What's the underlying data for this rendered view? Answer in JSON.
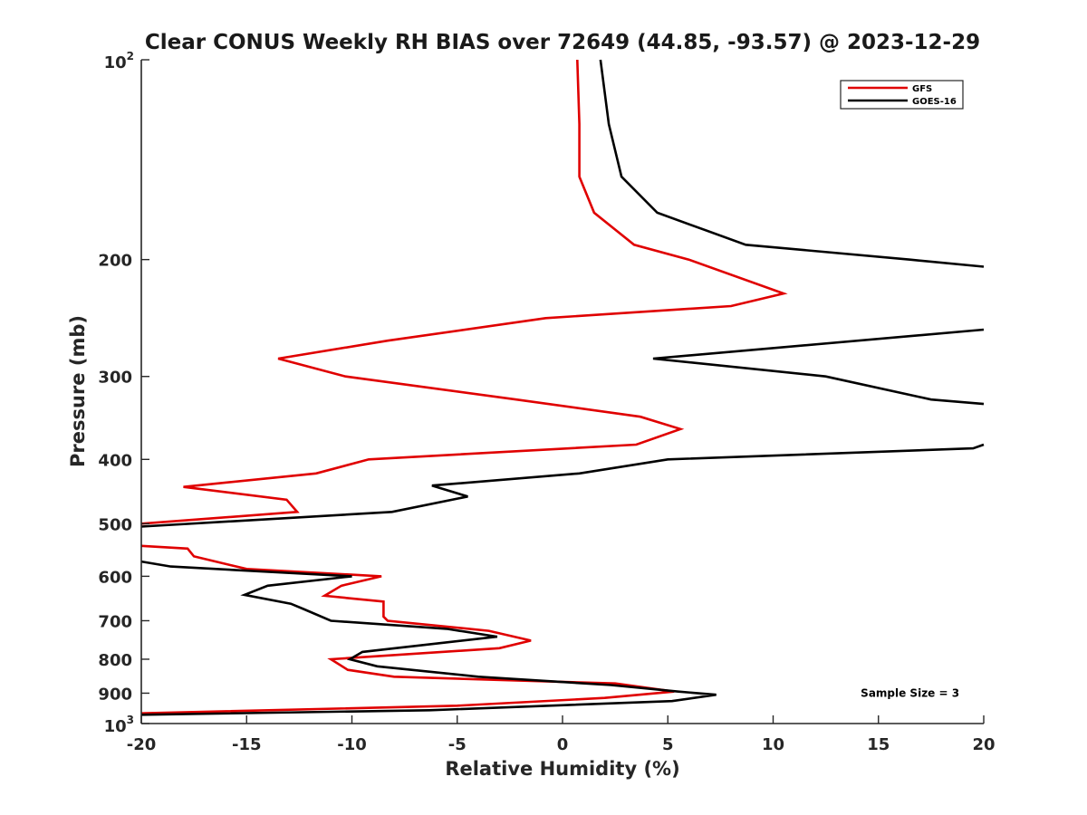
{
  "chart_data": {
    "type": "line",
    "title": "Clear CONUS Weekly RH BIAS over 72649 (44.85, -93.57) @ 2023-12-29",
    "xlabel": "Relative Humidity (%)",
    "ylabel": "Pressure (mb)",
    "xlim": [
      -20,
      20
    ],
    "ylim": [
      100,
      1000
    ],
    "y_scale": "log",
    "y_reversed": true,
    "grid": false,
    "legend_position": "top-right",
    "x_ticks": [
      -20,
      -15,
      -10,
      -5,
      0,
      5,
      10,
      15,
      20
    ],
    "x_tick_labels": [
      "-20",
      "-15",
      "-10",
      "-5",
      "0",
      "5",
      "10",
      "15",
      "20"
    ],
    "y_ticks": [
      200,
      300,
      400,
      500,
      600,
      700,
      800,
      900
    ],
    "y_tick_labels": [
      "200",
      "300",
      "400",
      "500",
      "600",
      "700",
      "800",
      "900"
    ],
    "y_edge_labels": [
      {
        "value": 100,
        "base": "10",
        "exp": "2"
      },
      {
        "value": 1000,
        "base": "10",
        "exp": "3"
      }
    ],
    "series": [
      {
        "name": "GFS",
        "color": "#e00000",
        "points": [
          [
            0.7,
            100
          ],
          [
            0.8,
            125
          ],
          [
            0.8,
            150
          ],
          [
            1.5,
            170
          ],
          [
            3.4,
            190
          ],
          [
            6.0,
            200
          ],
          [
            10.5,
            225
          ],
          [
            8.0,
            235
          ],
          [
            -0.8,
            245
          ],
          [
            -8.3,
            265
          ],
          [
            -13.5,
            282
          ],
          [
            -10.3,
            300
          ],
          [
            -2.2,
            325
          ],
          [
            3.7,
            345
          ],
          [
            5.6,
            360
          ],
          [
            3.5,
            380
          ],
          [
            -9.2,
            400
          ],
          [
            -11.7,
            420
          ],
          [
            -18.0,
            440
          ],
          [
            -13.1,
            460
          ],
          [
            -12.6,
            480
          ],
          [
            -20.0,
            500
          ],
          [
            null,
            535
          ],
          [
            -20.0,
            540
          ],
          [
            -17.8,
            545
          ],
          [
            -17.5,
            560
          ],
          [
            -15.0,
            585
          ],
          [
            -8.6,
            600
          ],
          [
            -10.5,
            620
          ],
          [
            -11.3,
            642
          ],
          [
            -8.5,
            655
          ],
          [
            -8.5,
            690
          ],
          [
            -8.3,
            700
          ],
          [
            -3.5,
            725
          ],
          [
            -1.5,
            750
          ],
          [
            -3.0,
            770
          ],
          [
            -11.0,
            800
          ],
          [
            -10.2,
            830
          ],
          [
            -8.0,
            850
          ],
          [
            2.5,
            870
          ],
          [
            5.3,
            895
          ],
          [
            2.0,
            915
          ],
          [
            -5.0,
            940
          ],
          [
            -20.0,
            965
          ]
        ]
      },
      {
        "name": "GOES-16",
        "color": "#000000",
        "points": [
          [
            1.8,
            100
          ],
          [
            2.2,
            125
          ],
          [
            2.8,
            150
          ],
          [
            4.5,
            170
          ],
          [
            8.7,
            190
          ],
          [
            16.5,
            200
          ],
          [
            20.0,
            205
          ],
          [
            null,
            255
          ],
          [
            20.0,
            255
          ],
          [
            4.3,
            282
          ],
          [
            12.5,
            300
          ],
          [
            17.5,
            325
          ],
          [
            20.0,
            330
          ],
          [
            null,
            380
          ],
          [
            20.0,
            380
          ],
          [
            19.5,
            385
          ],
          [
            5.0,
            400
          ],
          [
            0.8,
            420
          ],
          [
            -6.2,
            438
          ],
          [
            -4.5,
            455
          ],
          [
            -8.1,
            480
          ],
          [
            -20.0,
            505
          ],
          [
            null,
            570
          ],
          [
            -20.0,
            570
          ],
          [
            -18.6,
            580
          ],
          [
            -10.0,
            600
          ],
          [
            -14.0,
            620
          ],
          [
            -15.1,
            640
          ],
          [
            -12.9,
            660
          ],
          [
            -12.3,
            672
          ],
          [
            -11.0,
            700
          ],
          [
            -5.5,
            720
          ],
          [
            -3.1,
            740
          ],
          [
            -9.5,
            780
          ],
          [
            -10.1,
            800
          ],
          [
            -8.8,
            820
          ],
          [
            -4.0,
            850
          ],
          [
            2.3,
            875
          ],
          [
            5.5,
            895
          ],
          [
            7.3,
            905
          ],
          [
            5.2,
            925
          ],
          [
            -6.3,
            955
          ],
          [
            -20.0,
            970
          ]
        ]
      }
    ],
    "annotations": [
      {
        "text": "Sample Size = 3",
        "x": 16.5,
        "y": 900
      }
    ]
  }
}
